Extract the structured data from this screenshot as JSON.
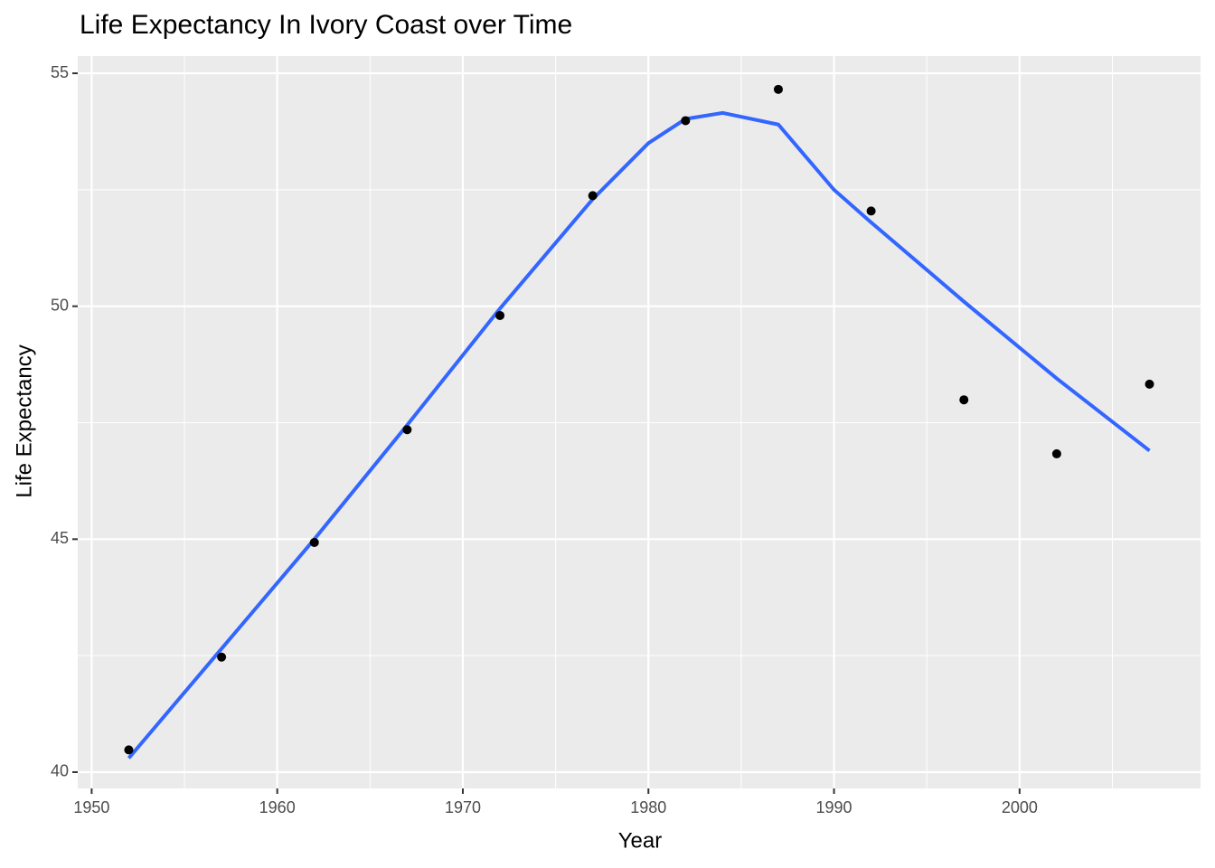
{
  "chart_data": {
    "type": "scatter",
    "title": "Life Expectancy In Ivory Coast over Time",
    "x_label": "Year",
    "y_label": "Life Expectancy",
    "x": [
      1952,
      1957,
      1962,
      1967,
      1972,
      1977,
      1982,
      1987,
      1992,
      1997,
      2002,
      2007
    ],
    "values": [
      40.477,
      42.469,
      44.93,
      47.35,
      49.801,
      52.374,
      53.983,
      54.655,
      52.044,
      47.991,
      46.832,
      48.328
    ],
    "color": "#000000",
    "smooth": {
      "color": "#3366ff",
      "x": [
        1952,
        1957,
        1962,
        1967,
        1972,
        1977,
        1980,
        1982,
        1984,
        1987,
        1990,
        1992,
        1997,
        2002,
        2007
      ],
      "values": [
        40.3,
        42.65,
        45.0,
        47.45,
        49.95,
        52.3,
        53.5,
        54.02,
        54.15,
        53.9,
        52.5,
        51.8,
        50.1,
        48.45,
        46.9
      ]
    },
    "xlim": [
      1949.25,
      2009.75
    ],
    "ylim": [
      39.65,
      55.37
    ],
    "xticks": [
      1950,
      1960,
      1970,
      1980,
      1990,
      2000
    ],
    "yticks": [
      40,
      45,
      50,
      55
    ],
    "x_minor_ticks": [
      1955,
      1965,
      1975,
      1985,
      1995,
      2005
    ],
    "y_minor_ticks": [
      42.5,
      47.5,
      52.5
    ],
    "grid": true
  }
}
